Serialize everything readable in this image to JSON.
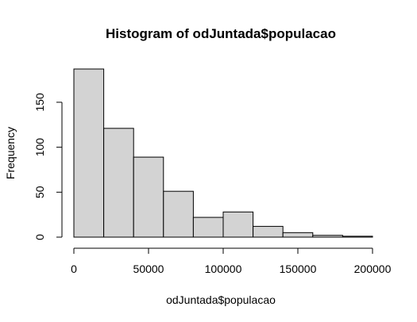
{
  "chart_data": {
    "type": "bar",
    "title": "Histogram of odJuntada$populacao",
    "xlabel": "odJuntada$populacao",
    "ylabel": "Frequency",
    "bins": [
      {
        "x0": 0,
        "x1": 20000,
        "count": 187
      },
      {
        "x0": 20000,
        "x1": 40000,
        "count": 121
      },
      {
        "x0": 40000,
        "x1": 60000,
        "count": 89
      },
      {
        "x0": 60000,
        "x1": 80000,
        "count": 51
      },
      {
        "x0": 80000,
        "x1": 100000,
        "count": 22
      },
      {
        "x0": 100000,
        "x1": 120000,
        "count": 28
      },
      {
        "x0": 120000,
        "x1": 140000,
        "count": 12
      },
      {
        "x0": 140000,
        "x1": 160000,
        "count": 5
      },
      {
        "x0": 160000,
        "x1": 180000,
        "count": 2
      },
      {
        "x0": 180000,
        "x1": 200000,
        "count": 1
      }
    ],
    "xlim": [
      0,
      200000
    ],
    "ylim": [
      0,
      187
    ],
    "x_ticks": [
      {
        "value": 0,
        "label": "0"
      },
      {
        "value": 50000,
        "label": "50000"
      },
      {
        "value": 100000,
        "label": "100000"
      },
      {
        "value": 150000,
        "label": "150000"
      },
      {
        "value": 200000,
        "label": "200000"
      }
    ],
    "y_ticks": [
      {
        "value": 0,
        "label": "0"
      },
      {
        "value": 50,
        "label": "50"
      },
      {
        "value": 100,
        "label": "100"
      },
      {
        "value": 150,
        "label": "150"
      }
    ],
    "grid": false,
    "bar_fill": "#d3d3d3",
    "bar_stroke": "#000000"
  }
}
